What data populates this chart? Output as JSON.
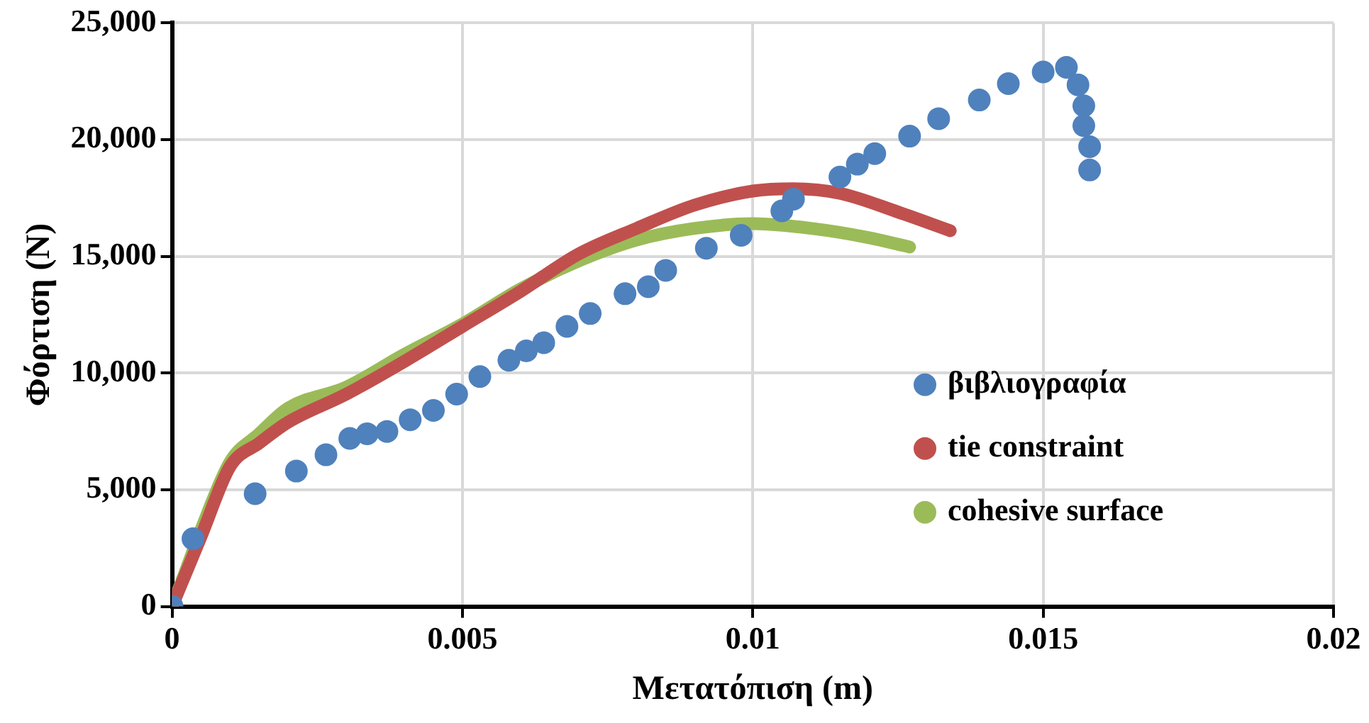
{
  "chart_data": {
    "type": "scatter",
    "xlabel": "Μετατόπιση (m)",
    "ylabel": "Φόρτιση (N)",
    "xlim": [
      0,
      0.02
    ],
    "xticks": [
      0,
      0.005,
      0.01,
      0.015,
      0.02
    ],
    "ylim": [
      0,
      25000
    ],
    "yticks": [
      {
        "value": 0,
        "label": "0"
      },
      {
        "value": 5000,
        "label": "5,000"
      },
      {
        "value": 10000,
        "label": "10,000"
      },
      {
        "value": 15000,
        "label": "15,000"
      },
      {
        "value": 20000,
        "label": "20,000"
      },
      {
        "value": 25000,
        "label": "25,000"
      }
    ],
    "grid": true,
    "legend": "right",
    "series": [
      {
        "name": "βιβλιογραφία",
        "type": "scatter",
        "marker": "circle",
        "color": "#4f81bd",
        "x": [
          0,
          0.00036,
          0.00143,
          0.00214,
          0.00265,
          0.00306,
          0.00336,
          0.0037,
          0.0041,
          0.0045,
          0.0049,
          0.0053,
          0.0058,
          0.0061,
          0.0064,
          0.0068,
          0.0072,
          0.0078,
          0.0082,
          0.0085,
          0.0092,
          0.0098,
          0.0105,
          0.0107,
          0.0115,
          0.0118,
          0.0121,
          0.0127,
          0.0132,
          0.0139,
          0.0144,
          0.015,
          0.0154,
          0.0156,
          0.0157,
          0.0157,
          0.0158,
          0.0158
        ],
        "values": [
          0,
          2900,
          4830,
          5800,
          6500,
          7200,
          7400,
          7500,
          8000,
          8400,
          9100,
          9850,
          10550,
          10950,
          11300,
          12000,
          12550,
          13400,
          13700,
          14400,
          15350,
          15900,
          16950,
          17450,
          18400,
          18950,
          19400,
          20150,
          20900,
          21700,
          22400,
          22900,
          23100,
          22350,
          21450,
          20600,
          19700,
          18700
        ]
      },
      {
        "name": "tie constraint",
        "type": "line",
        "marker": "none",
        "color": "#c0504d",
        "x": [
          0,
          0.0005,
          0.001,
          0.0015,
          0.002,
          0.003,
          0.004,
          0.005,
          0.006,
          0.007,
          0.008,
          0.009,
          0.01,
          0.0107,
          0.0115,
          0.0125,
          0.0134
        ],
        "values": [
          0,
          3000,
          6000,
          7000,
          7900,
          9100,
          10500,
          12000,
          13500,
          15100,
          16200,
          17200,
          17800,
          17900,
          17700,
          16900,
          16100
        ]
      },
      {
        "name": "cohesive surface",
        "type": "line",
        "marker": "none",
        "color": "#9bbb59",
        "x": [
          0,
          0.0002,
          0.0005,
          0.001,
          0.0015,
          0.002,
          0.003,
          0.004,
          0.005,
          0.006,
          0.007,
          0.008,
          0.009,
          0.01,
          0.011,
          0.012,
          0.0127
        ],
        "values": [
          0,
          1300,
          3300,
          6200,
          7400,
          8500,
          9400,
          10800,
          12100,
          13600,
          14800,
          15700,
          16200,
          16400,
          16200,
          15800,
          15400
        ]
      }
    ]
  }
}
